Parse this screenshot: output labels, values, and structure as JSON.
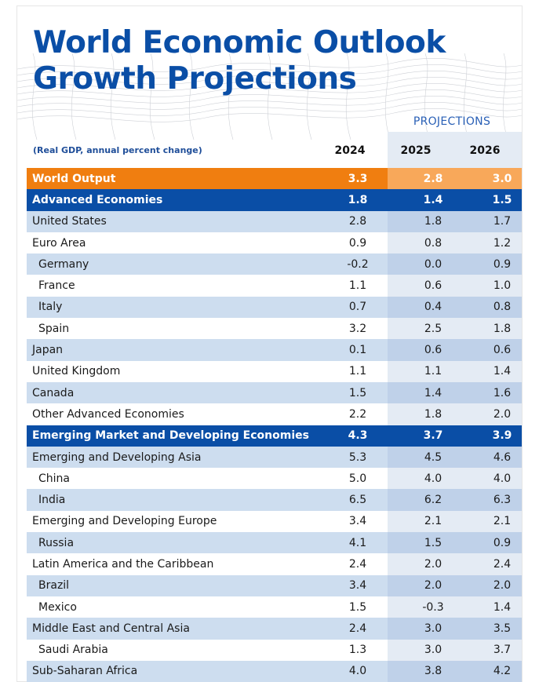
{
  "header": {
    "title_line1": "World Economic Outlook",
    "title_line2": "Growth Projections",
    "projections_label": "PROJECTIONS",
    "subtitle": "(Real GDP, annual percent change)",
    "years": [
      "2024",
      "2025",
      "2026"
    ]
  },
  "colors": {
    "title": "#0a4ea6",
    "world_row": "#f07e10",
    "group_row": "#0a4ea6",
    "zebra": "#cdddef"
  },
  "rows": [
    {
      "label": "World Output",
      "v2024": "3.3",
      "v2025": "2.8",
      "v2026": "3.0"
    },
    {
      "label": "Advanced Economies",
      "v2024": "1.8",
      "v2025": "1.4",
      "v2026": "1.5"
    },
    {
      "label": "United States",
      "v2024": "2.8",
      "v2025": "1.8",
      "v2026": "1.7"
    },
    {
      "label": "Euro Area",
      "v2024": "0.9",
      "v2025": "0.8",
      "v2026": "1.2"
    },
    {
      "label": "Germany",
      "v2024": "-0.2",
      "v2025": "0.0",
      "v2026": "0.9"
    },
    {
      "label": "France",
      "v2024": "1.1",
      "v2025": "0.6",
      "v2026": "1.0"
    },
    {
      "label": "Italy",
      "v2024": "0.7",
      "v2025": "0.4",
      "v2026": "0.8"
    },
    {
      "label": "Spain",
      "v2024": "3.2",
      "v2025": "2.5",
      "v2026": "1.8"
    },
    {
      "label": "Japan",
      "v2024": "0.1",
      "v2025": "0.6",
      "v2026": "0.6"
    },
    {
      "label": "United Kingdom",
      "v2024": "1.1",
      "v2025": "1.1",
      "v2026": "1.4"
    },
    {
      "label": "Canada",
      "v2024": "1.5",
      "v2025": "1.4",
      "v2026": "1.6"
    },
    {
      "label": "Other Advanced Economies",
      "v2024": "2.2",
      "v2025": "1.8",
      "v2026": "2.0"
    },
    {
      "label": "Emerging Market and Developing Economies",
      "v2024": "4.3",
      "v2025": "3.7",
      "v2026": "3.9"
    },
    {
      "label": "Emerging and Developing Asia",
      "v2024": "5.3",
      "v2025": "4.5",
      "v2026": "4.6"
    },
    {
      "label": "China",
      "v2024": "5.0",
      "v2025": "4.0",
      "v2026": "4.0"
    },
    {
      "label": "India",
      "v2024": "6.5",
      "v2025": "6.2",
      "v2026": "6.3"
    },
    {
      "label": "Emerging and Developing Europe",
      "v2024": "3.4",
      "v2025": "2.1",
      "v2026": "2.1"
    },
    {
      "label": "Russia",
      "v2024": "4.1",
      "v2025": "1.5",
      "v2026": "0.9"
    },
    {
      "label": "Latin America and the Caribbean",
      "v2024": "2.4",
      "v2025": "2.0",
      "v2026": "2.4"
    },
    {
      "label": "Brazil",
      "v2024": "3.4",
      "v2025": "2.0",
      "v2026": "2.0"
    },
    {
      "label": "Mexico",
      "v2024": "1.5",
      "v2025": "-0.3",
      "v2026": "1.4"
    },
    {
      "label": "Middle East and Central Asia",
      "v2024": "2.4",
      "v2025": "3.0",
      "v2026": "3.5"
    },
    {
      "label": "Saudi Arabia",
      "v2024": "1.3",
      "v2025": "3.0",
      "v2026": "3.7"
    },
    {
      "label": "Sub-Saharan Africa",
      "v2024": "4.0",
      "v2025": "3.8",
      "v2026": "4.2"
    }
  ]
}
